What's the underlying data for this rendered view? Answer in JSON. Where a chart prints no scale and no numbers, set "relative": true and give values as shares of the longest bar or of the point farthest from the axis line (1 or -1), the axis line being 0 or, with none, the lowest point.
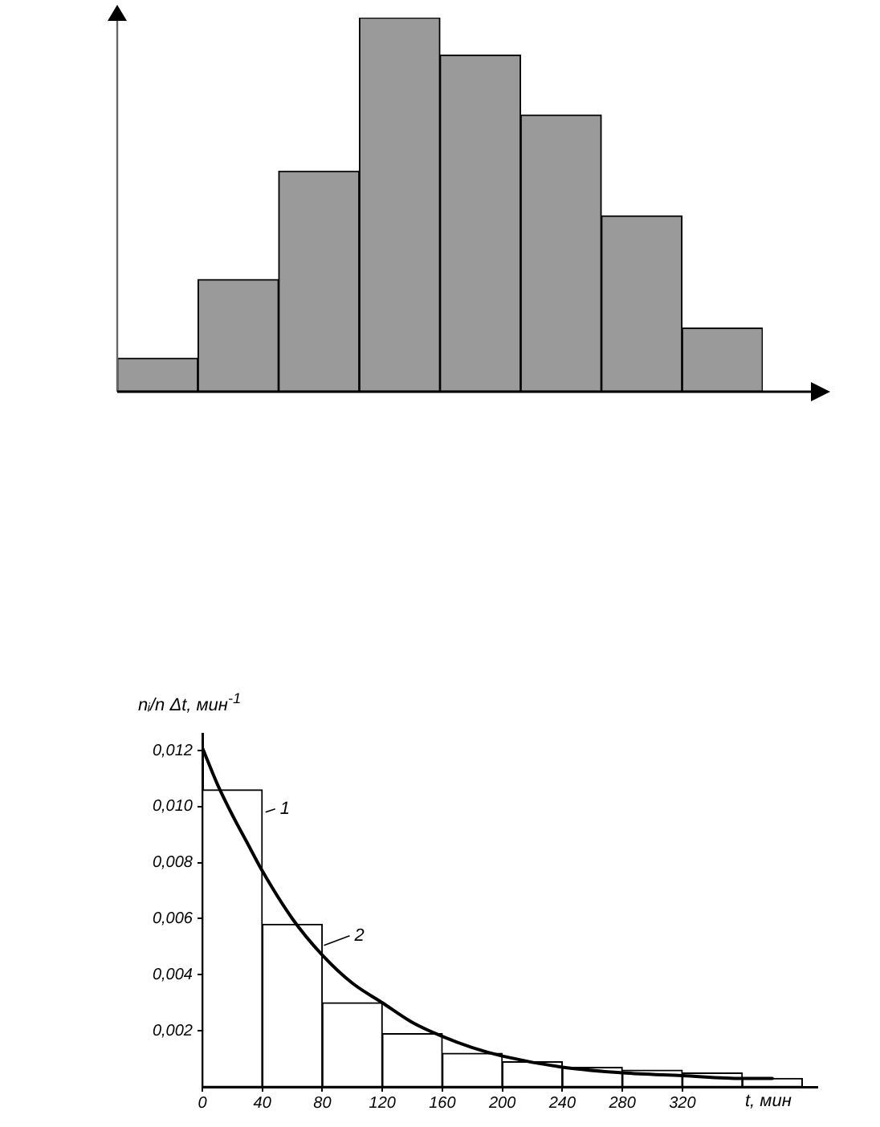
{
  "chart_data": [
    {
      "type": "bar",
      "categories": [
        null,
        null,
        null,
        null,
        null,
        null,
        null,
        null
      ],
      "values": [
        0.09,
        0.3,
        0.59,
        1,
        0.9,
        0.74,
        0.47,
        0.17
      ],
      "color": "#9a9a9a",
      "relative": true
    },
    {
      "type": "histogram",
      "xlabel": "t, мин",
      "ylabel": "nᵢ/n Δt, мин$^{-1}$",
      "bins": [
        0,
        40,
        80,
        120,
        160,
        200,
        240,
        280,
        320,
        360,
        400
      ],
      "values": [
        0.0106,
        0.0058,
        0.003,
        0.0019,
        0.0012,
        0.0009,
        0.0007,
        0.0006,
        0.0005,
        0.0003
      ],
      "color": "#ffffff",
      "xlim": [
        0,
        410
      ],
      "ylim": [
        0,
        0.0126
      ],
      "xticks": [
        0,
        40,
        80,
        120,
        160,
        200,
        240,
        280,
        320
      ],
      "yticks": [
        {
          "value": 0.002,
          "label": "0,002"
        },
        {
          "value": 0.004,
          "label": "0,004"
        },
        {
          "value": 0.006,
          "label": "0,006"
        },
        {
          "value": 0.008,
          "label": "0,008"
        },
        {
          "value": 0.01,
          "label": "0,010"
        },
        {
          "value": 0.012,
          "label": "0,012"
        }
      ],
      "marker": "none",
      "legend": "bottom left",
      "annotations": [
        {
          "text": "1",
          "x": 40,
          "y": 0.0098
        }
      ],
      "series": [
        {
          "name": "2",
          "type": "line",
          "color": "#000000",
          "x": [
            0,
            10,
            20,
            30,
            40,
            60,
            80,
            100,
            120,
            140,
            160,
            180,
            200,
            240,
            280,
            320,
            360,
            380
          ],
          "values": [
            0.0121,
            0.0108,
            0.0097,
            0.0087,
            0.0077,
            0.006,
            0.0047,
            0.0037,
            0.003,
            0.0023,
            0.0018,
            0.0014,
            0.0011,
            0.0007,
            0.0005,
            0.0004,
            0.0003,
            0.0003
          ]
        }
      ]
    }
  ]
}
